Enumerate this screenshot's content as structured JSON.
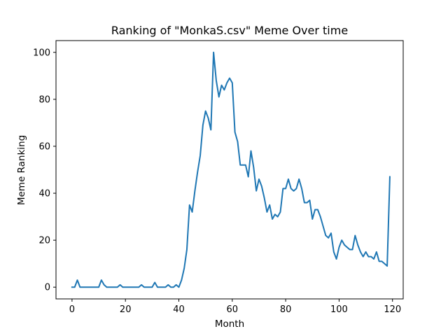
{
  "chart_data": {
    "type": "line",
    "title": "Ranking of \"MonkaS.csv\" Meme Over time",
    "xlabel": "Month",
    "ylabel": "Meme Ranking",
    "xlim": [
      -6,
      124
    ],
    "ylim": [
      -5,
      105
    ],
    "xticks": [
      0,
      20,
      40,
      60,
      80,
      100,
      120
    ],
    "yticks": [
      0,
      20,
      40,
      60,
      80,
      100
    ],
    "grid": false,
    "series": [
      {
        "color": "#1f77b4",
        "x": [
          0,
          1,
          2,
          3,
          4,
          5,
          6,
          7,
          8,
          9,
          10,
          11,
          12,
          13,
          14,
          15,
          16,
          17,
          18,
          19,
          20,
          21,
          22,
          23,
          24,
          25,
          26,
          27,
          28,
          29,
          30,
          31,
          32,
          33,
          34,
          35,
          36,
          37,
          38,
          39,
          40,
          41,
          42,
          43,
          44,
          45,
          46,
          47,
          48,
          49,
          50,
          51,
          52,
          53,
          54,
          55,
          56,
          57,
          58,
          59,
          60,
          61,
          62,
          63,
          64,
          65,
          66,
          67,
          68,
          69,
          70,
          71,
          72,
          73,
          74,
          75,
          76,
          77,
          78,
          79,
          80,
          81,
          82,
          83,
          84,
          85,
          86,
          87,
          88,
          89,
          90,
          91,
          92,
          93,
          94,
          95,
          96,
          97,
          98,
          99,
          100,
          101,
          102,
          103,
          104,
          105,
          106,
          107,
          108,
          109,
          110,
          111,
          112,
          113,
          114,
          115,
          116,
          117,
          118,
          119
        ],
        "values": [
          0,
          0,
          3,
          0,
          0,
          0,
          0,
          0,
          0,
          0,
          0,
          3,
          1,
          0,
          0,
          0,
          0,
          0,
          1,
          0,
          0,
          0,
          0,
          0,
          0,
          0,
          1,
          0,
          0,
          0,
          0,
          2,
          0,
          0,
          0,
          0,
          1,
          0,
          0,
          1,
          0,
          3,
          8,
          16,
          35,
          32,
          41,
          49,
          56,
          69,
          75,
          72,
          67,
          100,
          88,
          81,
          86,
          84,
          87,
          89,
          87,
          66,
          62,
          52,
          52,
          52,
          47,
          58,
          51,
          41,
          46,
          43,
          38,
          32,
          35,
          29,
          31,
          30,
          32,
          42,
          42,
          46,
          42,
          41,
          42,
          46,
          42,
          36,
          36,
          37,
          29,
          33,
          33,
          30,
          26,
          22,
          21,
          23,
          15,
          12,
          17,
          20,
          18,
          17,
          16,
          16,
          22,
          18,
          15,
          13,
          15,
          13,
          13,
          12,
          15,
          11,
          11,
          10,
          9,
          47
        ]
      }
    ]
  }
}
